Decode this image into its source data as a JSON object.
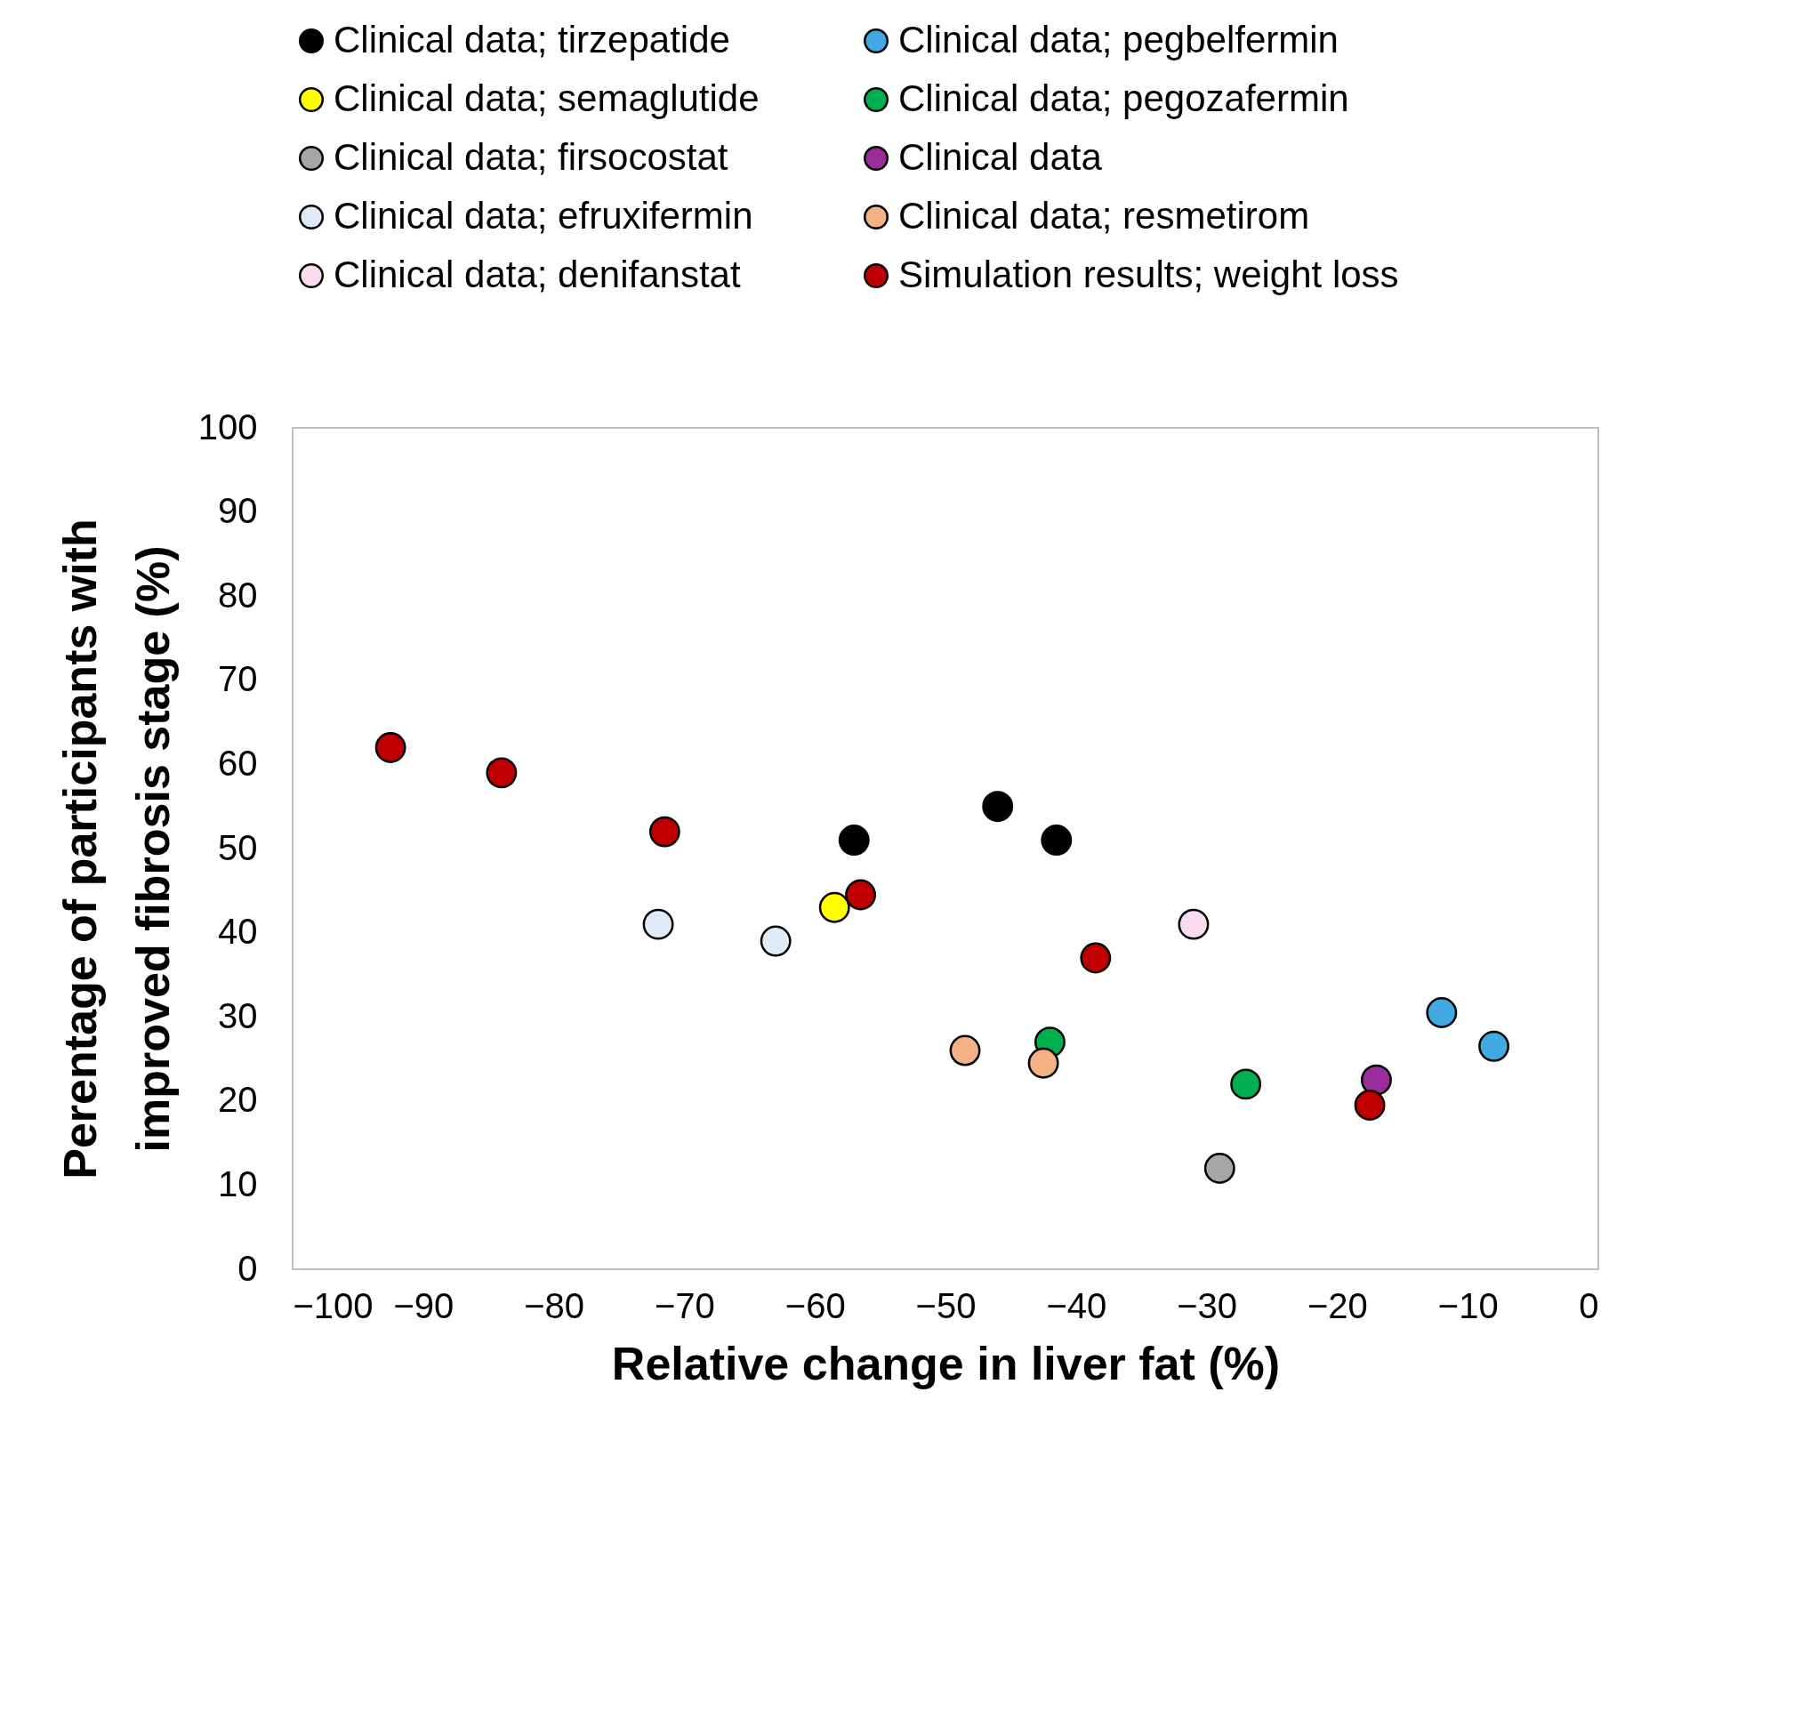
{
  "chart_data": {
    "type": "scatter",
    "xlabel": "Relative change in liver fat (%)",
    "ylabel": "Perentage of participants with\nimproved fibrosis stage (%)",
    "xlim": [
      -100,
      0
    ],
    "xticks": [
      -100,
      -90,
      -80,
      -70,
      -60,
      -50,
      -40,
      -30,
      -20,
      -10,
      0
    ],
    "ylim": [
      0,
      100
    ],
    "yticks": [
      0,
      10,
      20,
      30,
      40,
      50,
      60,
      70,
      80,
      90,
      100
    ],
    "grid": false,
    "legend": "top",
    "marker": "circle",
    "series": [
      {
        "name": "Clinical data; tirzepatide",
        "color": "#000000",
        "x": [
          -57,
          -46,
          -41.5
        ],
        "values": [
          51,
          55,
          51
        ]
      },
      {
        "name": "Clinical data; semaglutide",
        "color": "#ffff00",
        "x": [
          -58.5
        ],
        "values": [
          43
        ]
      },
      {
        "name": "Clinical data; firsocostat",
        "color": "#a6a6a6",
        "x": [
          -29
        ],
        "values": [
          12
        ]
      },
      {
        "name": "Clinical data; efruxifermin",
        "color": "#deebf7",
        "x": [
          -72,
          -63
        ],
        "values": [
          41,
          39
        ]
      },
      {
        "name": "Clinical data; denifanstat",
        "color": "#fadbf0",
        "x": [
          -31
        ],
        "values": [
          41
        ]
      },
      {
        "name": "Clinical data; pegbelfermin",
        "color": "#3fa9e0",
        "x": [
          -12,
          -8
        ],
        "values": [
          30.5,
          26.5
        ]
      },
      {
        "name": "Clinical data; pegozafermin",
        "color": "#00b050",
        "x": [
          -42,
          -27
        ],
        "values": [
          27,
          22
        ]
      },
      {
        "name": "Clinical data",
        "color": "#9b2d9b",
        "x": [
          -17
        ],
        "values": [
          22.5
        ]
      },
      {
        "name": "Clinical data; resmetirom",
        "color": "#f4b183",
        "x": [
          -48.5,
          -42.5
        ],
        "values": [
          26,
          24.5
        ]
      },
      {
        "name": "Simulation results; weight loss",
        "color": "#c00000",
        "x": [
          -92.5,
          -84,
          -71.5,
          -56.5,
          -38.5,
          -17.5
        ],
        "values": [
          62,
          59,
          52,
          44.5,
          37,
          19.5
        ]
      }
    ]
  }
}
